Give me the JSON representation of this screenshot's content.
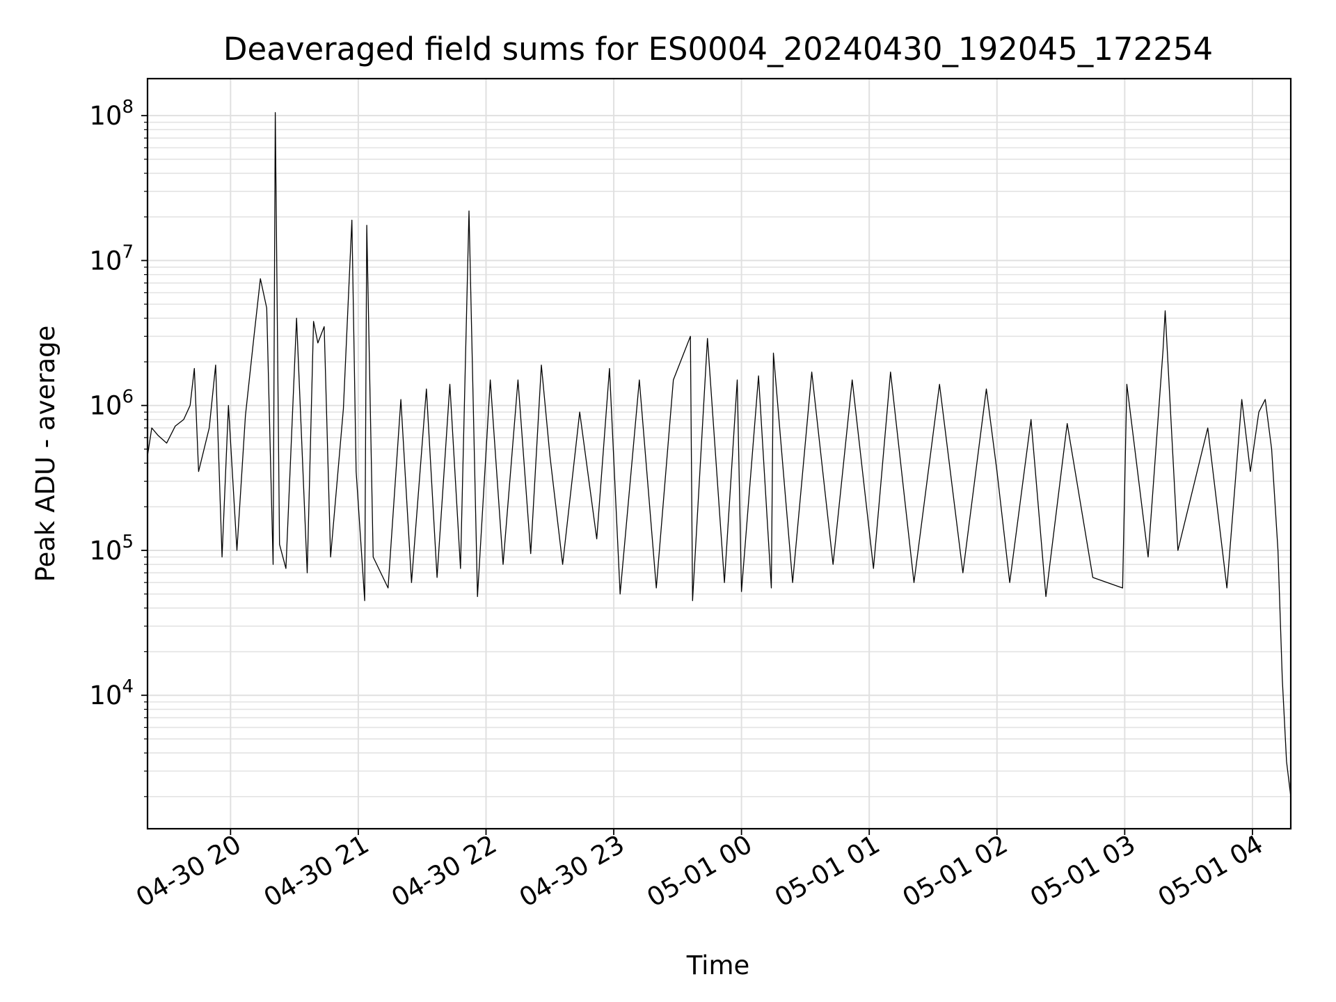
{
  "chart_data": {
    "type": "line",
    "title": "Deaveraged field sums for ES0004_20240430_192045_172254",
    "xlabel": "Time",
    "ylabel": "Peak ADU - average",
    "yscale": "log",
    "xlim": [
      "2024-04-30 19:21",
      "2024-05-01 04:18"
    ],
    "ylim": [
      1200,
      180000000
    ],
    "grid": true,
    "x_ticks": [
      "04-30 20",
      "04-30 21",
      "04-30 22",
      "04-30 23",
      "05-01 00",
      "05-01 01",
      "05-01 02",
      "05-01 03",
      "05-01 04"
    ],
    "x_tick_times": [
      "2024-04-30 20:00",
      "2024-04-30 21:00",
      "2024-04-30 22:00",
      "2024-04-30 23:00",
      "2024-05-01 00:00",
      "2024-05-01 01:00",
      "2024-05-01 02:00",
      "2024-05-01 03:00",
      "2024-05-01 04:00"
    ],
    "y_ticks": [
      {
        "base": "10",
        "exp": "4",
        "value": 10000
      },
      {
        "base": "10",
        "exp": "5",
        "value": 100000
      },
      {
        "base": "10",
        "exp": "6",
        "value": 1000000
      },
      {
        "base": "10",
        "exp": "7",
        "value": 10000000
      },
      {
        "base": "10",
        "exp": "8",
        "value": 100000000
      }
    ],
    "series": [
      {
        "color": "#000000",
        "points": [
          [
            "2024-04-30 19:21",
            450000
          ],
          [
            "2024-04-30 19:23",
            700000
          ],
          [
            "2024-04-30 19:26",
            620000
          ],
          [
            "2024-04-30 19:30",
            550000
          ],
          [
            "2024-04-30 19:34",
            720000
          ],
          [
            "2024-04-30 19:38",
            800000
          ],
          [
            "2024-04-30 19:41",
            1000000
          ],
          [
            "2024-04-30 19:43",
            1800000
          ],
          [
            "2024-04-30 19:45",
            350000
          ],
          [
            "2024-04-30 19:50",
            700000
          ],
          [
            "2024-04-30 19:53",
            1900000
          ],
          [
            "2024-04-30 19:56",
            90000
          ],
          [
            "2024-04-30 19:59",
            1000000
          ],
          [
            "2024-04-30 20:03",
            100000
          ],
          [
            "2024-04-30 20:07",
            850000
          ],
          [
            "2024-04-30 20:11",
            3000000
          ],
          [
            "2024-04-30 20:14",
            7500000
          ],
          [
            "2024-04-30 20:17",
            4700000
          ],
          [
            "2024-04-30 20:20",
            80000
          ],
          [
            "2024-04-30 20:21",
            105000000
          ],
          [
            "2024-04-30 20:23",
            110000
          ],
          [
            "2024-04-30 20:26",
            75000
          ],
          [
            "2024-04-30 20:31",
            4000000
          ],
          [
            "2024-04-30 20:36",
            70000
          ],
          [
            "2024-04-30 20:39",
            3800000
          ],
          [
            "2024-04-30 20:41",
            2700000
          ],
          [
            "2024-04-30 20:44",
            3500000
          ],
          [
            "2024-04-30 20:47",
            90000
          ],
          [
            "2024-04-30 20:53",
            950000
          ],
          [
            "2024-04-30 20:57",
            19000000
          ],
          [
            "2024-04-30 20:59",
            350000
          ],
          [
            "2024-04-30 21:03",
            45000
          ],
          [
            "2024-04-30 21:04",
            17500000
          ],
          [
            "2024-04-30 21:07",
            90000
          ],
          [
            "2024-04-30 21:14",
            55000
          ],
          [
            "2024-04-30 21:20",
            1100000
          ],
          [
            "2024-04-30 21:25",
            60000
          ],
          [
            "2024-04-30 21:32",
            1300000
          ],
          [
            "2024-04-30 21:37",
            65000
          ],
          [
            "2024-04-30 21:43",
            1400000
          ],
          [
            "2024-04-30 21:48",
            75000
          ],
          [
            "2024-04-30 21:52",
            22000000
          ],
          [
            "2024-04-30 21:56",
            48000
          ],
          [
            "2024-04-30 22:02",
            1500000
          ],
          [
            "2024-04-30 22:08",
            80000
          ],
          [
            "2024-04-30 22:15",
            1500000
          ],
          [
            "2024-04-30 22:21",
            95000
          ],
          [
            "2024-04-30 22:26",
            1900000
          ],
          [
            "2024-04-30 22:30",
            450000
          ],
          [
            "2024-04-30 22:36",
            80000
          ],
          [
            "2024-04-30 22:44",
            900000
          ],
          [
            "2024-04-30 22:52",
            120000
          ],
          [
            "2024-04-30 22:58",
            1800000
          ],
          [
            "2024-04-30 23:03",
            50000
          ],
          [
            "2024-04-30 23:12",
            1500000
          ],
          [
            "2024-04-30 23:20",
            55000
          ],
          [
            "2024-04-30 23:28",
            1500000
          ],
          [
            "2024-04-30 23:36",
            3000000
          ],
          [
            "2024-04-30 23:37",
            45000
          ],
          [
            "2024-04-30 23:44",
            2900000
          ],
          [
            "2024-04-30 23:52",
            60000
          ],
          [
            "2024-04-30 23:58",
            1500000
          ],
          [
            "2024-05-01 00:00",
            52000
          ],
          [
            "2024-05-01 00:08",
            1600000
          ],
          [
            "2024-05-01 00:14",
            55000
          ],
          [
            "2024-05-01 00:15",
            2300000
          ],
          [
            "2024-05-01 00:24",
            60000
          ],
          [
            "2024-05-01 00:33",
            1700000
          ],
          [
            "2024-05-01 00:43",
            80000
          ],
          [
            "2024-05-01 00:52",
            1500000
          ],
          [
            "2024-05-01 01:02",
            75000
          ],
          [
            "2024-05-01 01:10",
            1700000
          ],
          [
            "2024-05-01 01:21",
            60000
          ],
          [
            "2024-05-01 01:33",
            1400000
          ],
          [
            "2024-05-01 01:44",
            70000
          ],
          [
            "2024-05-01 01:55",
            1300000
          ],
          [
            "2024-05-01 02:00",
            350000
          ],
          [
            "2024-05-01 02:06",
            60000
          ],
          [
            "2024-05-01 02:16",
            800000
          ],
          [
            "2024-05-01 02:23",
            48000
          ],
          [
            "2024-05-01 02:33",
            750000
          ],
          [
            "2024-05-01 02:45",
            65000
          ],
          [
            "2024-05-01 02:59",
            55000
          ],
          [
            "2024-05-01 03:01",
            1400000
          ],
          [
            "2024-05-01 03:11",
            90000
          ],
          [
            "2024-05-01 03:18",
            2400000
          ],
          [
            "2024-05-01 03:19",
            4500000
          ],
          [
            "2024-05-01 03:25",
            100000
          ],
          [
            "2024-05-01 03:39",
            700000
          ],
          [
            "2024-05-01 03:48",
            55000
          ],
          [
            "2024-05-01 03:55",
            1100000
          ],
          [
            "2024-05-01 03:59",
            350000
          ],
          [
            "2024-05-01 04:03",
            900000
          ],
          [
            "2024-05-01 04:06",
            1100000
          ],
          [
            "2024-05-01 04:09",
            500000
          ],
          [
            "2024-05-01 04:12",
            100000
          ],
          [
            "2024-05-01 04:14",
            13000
          ],
          [
            "2024-05-01 04:16",
            3500
          ],
          [
            "2024-05-01 04:18",
            2000
          ]
        ]
      }
    ]
  }
}
